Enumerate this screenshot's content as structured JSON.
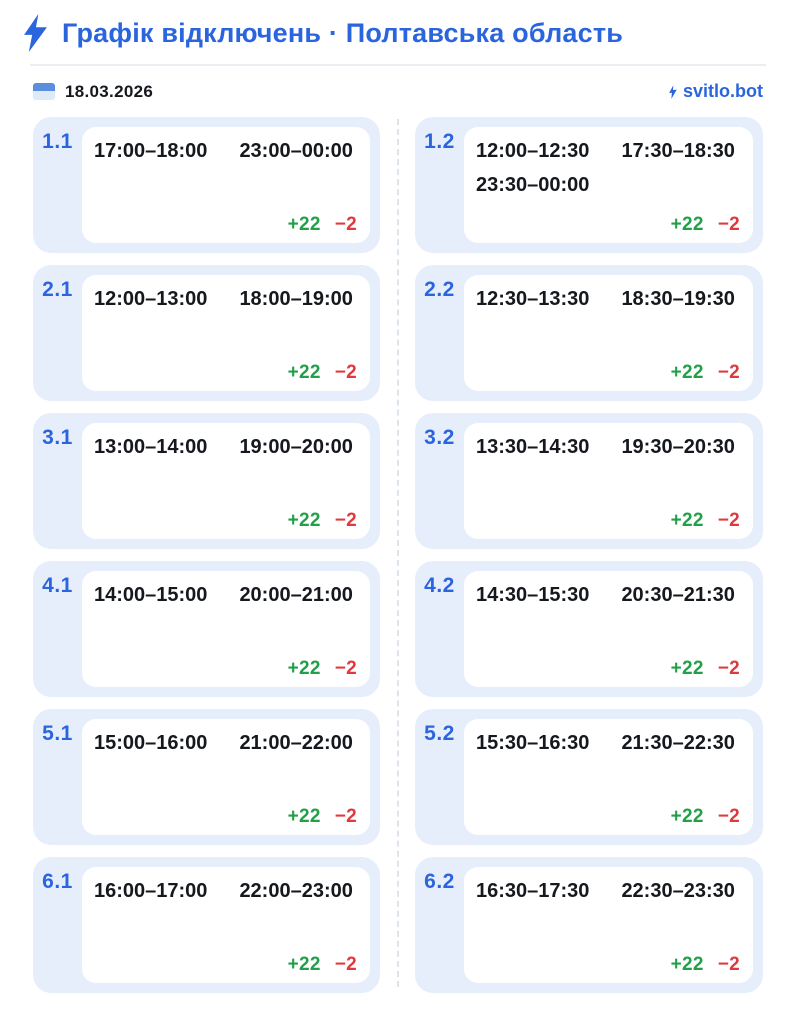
{
  "header": {
    "title": "Графік відключень · Полтавська область",
    "date": "18.03.2026",
    "brand": "svitlo.bot"
  },
  "colors": {
    "accent": "#2b65de",
    "card_bg": "#e7eefb",
    "green": "#22a049",
    "red": "#e0393f",
    "flag_top": "#5b8fdd",
    "flag_bottom": "#ddeaf8"
  },
  "groups": [
    {
      "id": "1.1",
      "periods": [
        "17:00–18:00",
        "23:00–00:00"
      ],
      "up": "+22",
      "down": "−2"
    },
    {
      "id": "1.2",
      "periods": [
        "12:00–12:30",
        "17:30–18:30",
        "23:30–00:00"
      ],
      "up": "+22",
      "down": "−2"
    },
    {
      "id": "2.1",
      "periods": [
        "12:00–13:00",
        "18:00–19:00"
      ],
      "up": "+22",
      "down": "−2"
    },
    {
      "id": "2.2",
      "periods": [
        "12:30–13:30",
        "18:30–19:30"
      ],
      "up": "+22",
      "down": "−2"
    },
    {
      "id": "3.1",
      "periods": [
        "13:00–14:00",
        "19:00–20:00"
      ],
      "up": "+22",
      "down": "−2"
    },
    {
      "id": "3.2",
      "periods": [
        "13:30–14:30",
        "19:30–20:30"
      ],
      "up": "+22",
      "down": "−2"
    },
    {
      "id": "4.1",
      "periods": [
        "14:00–15:00",
        "20:00–21:00"
      ],
      "up": "+22",
      "down": "−2"
    },
    {
      "id": "4.2",
      "periods": [
        "14:30–15:30",
        "20:30–21:30"
      ],
      "up": "+22",
      "down": "−2"
    },
    {
      "id": "5.1",
      "periods": [
        "15:00–16:00",
        "21:00–22:00"
      ],
      "up": "+22",
      "down": "−2"
    },
    {
      "id": "5.2",
      "periods": [
        "15:30–16:30",
        "21:30–22:30"
      ],
      "up": "+22",
      "down": "−2"
    },
    {
      "id": "6.1",
      "periods": [
        "16:00–17:00",
        "22:00–23:00"
      ],
      "up": "+22",
      "down": "−2"
    },
    {
      "id": "6.2",
      "periods": [
        "16:30–17:30",
        "22:30–23:30"
      ],
      "up": "+22",
      "down": "−2"
    }
  ]
}
